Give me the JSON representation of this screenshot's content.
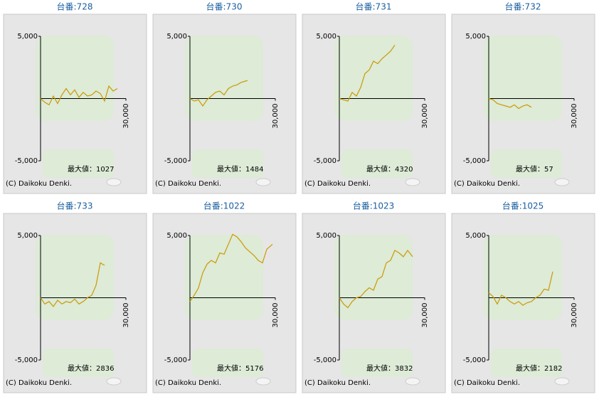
{
  "chart_data": [
    {
      "type": "line",
      "title": "台番:728",
      "x": [
        0,
        1500,
        3000,
        4500,
        6000,
        7500,
        9000,
        10500,
        12000,
        13500,
        15000,
        16500,
        18000,
        19500,
        21000,
        22500,
        24000,
        25500,
        27000
      ],
      "values": [
        0,
        -300,
        -500,
        200,
        -400,
        300,
        800,
        300,
        700,
        100,
        500,
        200,
        300,
        600,
        400,
        -200,
        1000,
        600,
        800
      ],
      "color": "#cc9900",
      "xlim": [
        0,
        30000
      ],
      "xticks": [
        {
          "value": 30000,
          "label": "30,000"
        }
      ],
      "ylim": [
        -5000,
        5000
      ],
      "yticks": [
        {
          "value": -5000,
          "label": "-5,000"
        },
        {
          "value": 5000,
          "label": "5,000"
        }
      ],
      "max_label": "最大値：",
      "max_value": 1027,
      "copyright": "(C) Daikoku Denki."
    },
    {
      "type": "line",
      "title": "台番:730",
      "x": [
        0,
        1500,
        3000,
        4500,
        6000,
        7500,
        9000,
        10500,
        12000,
        13500,
        15000,
        16500,
        18000,
        19500,
        20250
      ],
      "values": [
        0,
        -200,
        -100,
        -600,
        -100,
        200,
        500,
        600,
        300,
        800,
        1000,
        1100,
        1300,
        1400,
        1450
      ],
      "color": "#cc9900",
      "xlim": [
        0,
        30000
      ],
      "xticks": [
        {
          "value": 30000,
          "label": "30,000"
        }
      ],
      "ylim": [
        -5000,
        5000
      ],
      "yticks": [
        {
          "value": -5000,
          "label": "-5,000"
        },
        {
          "value": 5000,
          "label": "5,000"
        }
      ],
      "max_label": "最大値：",
      "max_value": 1484,
      "copyright": "(C) Daikoku Denki."
    },
    {
      "type": "line",
      "title": "台番:731",
      "x": [
        0,
        1500,
        3000,
        4500,
        6000,
        7500,
        9000,
        10500,
        12000,
        13500,
        15000,
        16500,
        18000,
        19500
      ],
      "values": [
        0,
        -100,
        -200,
        500,
        200,
        900,
        2000,
        2300,
        3000,
        2800,
        3200,
        3500,
        3800,
        4300
      ],
      "color": "#cc9900",
      "xlim": [
        0,
        30000
      ],
      "xticks": [
        {
          "value": 30000,
          "label": "30,000"
        }
      ],
      "ylim": [
        -5000,
        5000
      ],
      "yticks": [
        {
          "value": -5000,
          "label": "-5,000"
        },
        {
          "value": 5000,
          "label": "5,000"
        }
      ],
      "max_label": "最大値：",
      "max_value": 4320,
      "copyright": "(C) Daikoku Denki."
    },
    {
      "type": "line",
      "title": "台番:732",
      "x": [
        0,
        1500,
        3000,
        4500,
        6000,
        7500,
        9000,
        10500,
        12000,
        13500,
        15000
      ],
      "values": [
        0,
        -100,
        -400,
        -500,
        -600,
        -700,
        -500,
        -800,
        -600,
        -500,
        -700
      ],
      "color": "#cc9900",
      "xlim": [
        0,
        30000
      ],
      "xticks": [
        {
          "value": 30000,
          "label": "30,000"
        }
      ],
      "ylim": [
        -5000,
        5000
      ],
      "yticks": [
        {
          "value": -5000,
          "label": "-5,000"
        },
        {
          "value": 5000,
          "label": "5,000"
        }
      ],
      "max_label": "最大値：",
      "max_value": 57,
      "copyright": "(C) Daikoku Denki."
    },
    {
      "type": "line",
      "title": "台番:733",
      "x": [
        0,
        1500,
        3000,
        4500,
        6000,
        7500,
        9000,
        10500,
        12000,
        13500,
        15000,
        16500,
        18000,
        19500,
        21000,
        22500
      ],
      "values": [
        0,
        -500,
        -300,
        -700,
        -200,
        -500,
        -300,
        -400,
        -100,
        -500,
        -300,
        0,
        200,
        1000,
        2800,
        2600
      ],
      "color": "#cc9900",
      "xlim": [
        0,
        30000
      ],
      "xticks": [
        {
          "value": 30000,
          "label": "30,000"
        }
      ],
      "ylim": [
        -5000,
        5000
      ],
      "yticks": [
        {
          "value": -5000,
          "label": "-5,000"
        },
        {
          "value": 5000,
          "label": "5,000"
        }
      ],
      "max_label": "最大値：",
      "max_value": 2836,
      "copyright": "(C) Daikoku Denki."
    },
    {
      "type": "line",
      "title": "台番:1022",
      "x": [
        0,
        1500,
        3000,
        4500,
        6000,
        7500,
        9000,
        10500,
        12000,
        13500,
        15000,
        16500,
        18000,
        19500,
        21000,
        22500,
        24000,
        25500,
        27000,
        29000
      ],
      "values": [
        -300,
        200,
        800,
        2000,
        2700,
        3000,
        2800,
        3600,
        3500,
        4300,
        5100,
        4900,
        4500,
        4000,
        3700,
        3400,
        3000,
        2800,
        3900,
        4300
      ],
      "color": "#cc9900",
      "xlim": [
        0,
        30000
      ],
      "xticks": [
        {
          "value": 30000,
          "label": "30,000"
        }
      ],
      "ylim": [
        -5000,
        5000
      ],
      "yticks": [
        {
          "value": -5000,
          "label": "-5,000"
        },
        {
          "value": 5000,
          "label": "5,000"
        }
      ],
      "max_label": "最大値：",
      "max_value": 5176,
      "copyright": "(C) Daikoku Denki."
    },
    {
      "type": "line",
      "title": "台番:1023",
      "x": [
        0,
        1500,
        3000,
        4500,
        6000,
        7500,
        9000,
        10500,
        12000,
        13500,
        15000,
        16500,
        18000,
        19500,
        21000,
        22500,
        24000,
        25750
      ],
      "values": [
        0,
        -500,
        -800,
        -300,
        0,
        100,
        500,
        800,
        600,
        1500,
        1700,
        2800,
        3000,
        3800,
        3600,
        3300,
        3800,
        3300
      ],
      "color": "#cc9900",
      "xlim": [
        0,
        30000
      ],
      "xticks": [
        {
          "value": 30000,
          "label": "30,000"
        }
      ],
      "ylim": [
        -5000,
        5000
      ],
      "yticks": [
        {
          "value": -5000,
          "label": "-5,000"
        },
        {
          "value": 5000,
          "label": "5,000"
        }
      ],
      "max_label": "最大値：",
      "max_value": 3832,
      "copyright": "(C) Daikoku Denki."
    },
    {
      "type": "line",
      "title": "台番:1025",
      "x": [
        0,
        1500,
        3000,
        4500,
        6000,
        7500,
        9000,
        10500,
        12000,
        13500,
        15000,
        16500,
        18000,
        19500,
        21000,
        22500
      ],
      "values": [
        400,
        100,
        -500,
        200,
        0,
        -300,
        -500,
        -300,
        -600,
        -400,
        -300,
        0,
        200,
        700,
        600,
        2100
      ],
      "color": "#cc9900",
      "xlim": [
        0,
        30000
      ],
      "xticks": [
        {
          "value": 30000,
          "label": "30,000"
        }
      ],
      "ylim": [
        -5000,
        5000
      ],
      "yticks": [
        {
          "value": -5000,
          "label": "-5,000"
        },
        {
          "value": 5000,
          "label": "5,000"
        }
      ],
      "max_label": "最大値：",
      "max_value": 2182,
      "copyright": "(C) Daikoku Denki."
    }
  ]
}
